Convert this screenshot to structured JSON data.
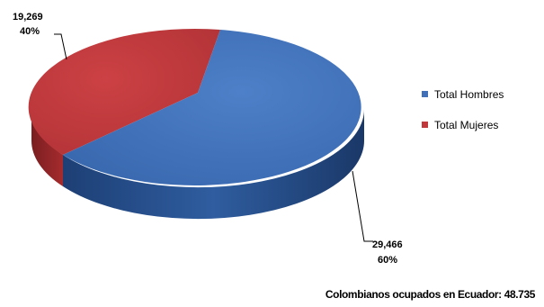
{
  "chart_data": {
    "type": "pie",
    "series": [
      {
        "name": "Total Hombres",
        "value": 29466,
        "value_label": "29,466",
        "percent_label": "60%",
        "color": "#3f70b8"
      },
      {
        "name": "Total Mujeres",
        "value": 19269,
        "value_label": "19,269",
        "percent_label": "40%",
        "color": "#c0383b"
      }
    ],
    "style": "3d-exploded",
    "legend_position": "right",
    "note": "Colombianos ocupados en Ecuador: 48.735"
  }
}
